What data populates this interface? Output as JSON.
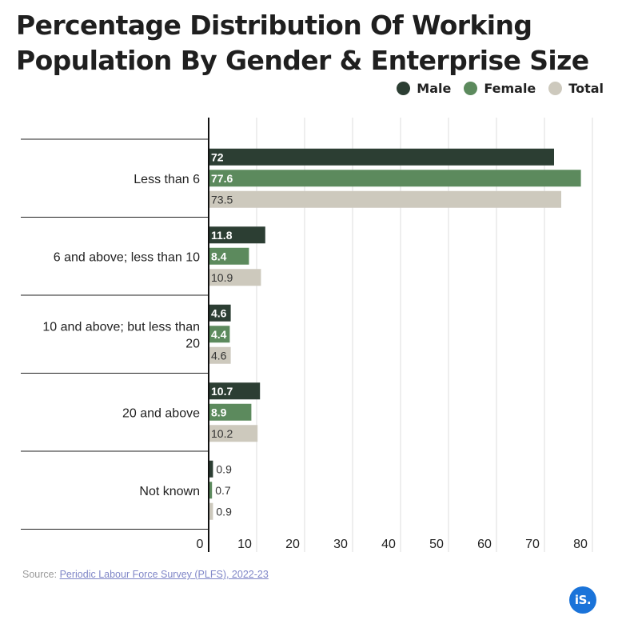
{
  "title": "Percentage Distribution Of Working Population By Gender & Enterprise Size",
  "source": {
    "prefix": "Source: ",
    "link_text": "Periodic Labour Force Survey (PLFS), 2022-23"
  },
  "logo_text": "iS.",
  "colors": {
    "male": "#2c3e33",
    "female": "#5c8a5d",
    "total": "#cdc9bd",
    "grid": "#dddddd",
    "axis": "#111111"
  },
  "chart_data": {
    "type": "bar",
    "orientation": "horizontal",
    "title": "Percentage Distribution Of Working Population By Gender & Enterprise Size",
    "categories": [
      "Less than 6",
      "6 and above; less than 10",
      "10 and above; but less than 20",
      "20 and above",
      "Not known"
    ],
    "category_lines": [
      [
        "Less than 6"
      ],
      [
        "6 and above; less than 10"
      ],
      [
        "10 and above; but less than",
        "20"
      ],
      [
        "20 and above"
      ],
      [
        "Not known"
      ]
    ],
    "series": [
      {
        "name": "Male",
        "color": "#2c3e33",
        "values": [
          72,
          11.8,
          4.6,
          10.7,
          0.9
        ],
        "labels": [
          "72",
          "11.8",
          "4.6",
          "10.7",
          "0.9"
        ]
      },
      {
        "name": "Female",
        "color": "#5c8a5d",
        "values": [
          77.6,
          8.4,
          4.4,
          8.9,
          0.7
        ],
        "labels": [
          "77.6",
          "8.4",
          "4.4",
          "8.9",
          "0.7"
        ]
      },
      {
        "name": "Total",
        "color": "#cdc9bd",
        "values": [
          73.5,
          10.9,
          4.6,
          10.2,
          0.9
        ],
        "labels": [
          "73.5",
          "10.9",
          "4.6",
          "10.2",
          "0.9"
        ]
      }
    ],
    "xlim": [
      0,
      80
    ],
    "xticks": [
      0,
      10,
      20,
      30,
      40,
      50,
      60,
      70,
      80
    ],
    "xlabel": "",
    "ylabel": "",
    "grid": true,
    "legend_position": "top-right"
  }
}
